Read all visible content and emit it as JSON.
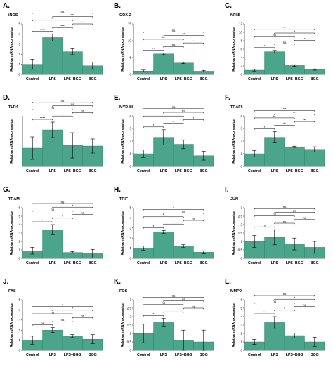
{
  "colors": {
    "bar": "#4aa58a",
    "bar_stroke": "#2f7d64",
    "axis": "#000000"
  },
  "chart_data": [
    {
      "type": "bar",
      "panel": "A.",
      "title": "iNOS",
      "ylabel": "Relative mRNA expression",
      "categories": [
        "Control",
        "LPS",
        "LPS+BGG",
        "BGG"
      ],
      "values": [
        1.0,
        3.65,
        2.25,
        0.85
      ],
      "errors": [
        0.5,
        0.35,
        0.3,
        0.35
      ],
      "ylim": [
        0,
        5
      ],
      "yticks": [
        0,
        1,
        2,
        3,
        4,
        5
      ],
      "comparisons": [
        {
          "pair": [
            0,
            1
          ],
          "label": "****"
        },
        {
          "pair": [
            0,
            2
          ],
          "label": "**"
        },
        {
          "pair": [
            0,
            3
          ],
          "label": "ns"
        },
        {
          "pair": [
            1,
            2
          ],
          "label": "***"
        },
        {
          "pair": [
            1,
            3
          ],
          "label": "***"
        },
        {
          "pair": [
            2,
            3
          ],
          "label": "**"
        }
      ]
    },
    {
      "type": "bar",
      "panel": "B.",
      "title": "COX-2",
      "ylabel": "Relative mRNA expression",
      "categories": [
        "Control",
        "LPS",
        "LPS+BGG",
        "BGG"
      ],
      "values": [
        1.0,
        6.1,
        3.4,
        0.95
      ],
      "errors": [
        0.3,
        0.25,
        0.2,
        0.25
      ],
      "ylim": [
        0,
        15
      ],
      "yticks": [
        0,
        5,
        10,
        15
      ],
      "comparisons": [
        {
          "pair": [
            0,
            1
          ],
          "label": "**"
        },
        {
          "pair": [
            0,
            2
          ],
          "label": "**"
        },
        {
          "pair": [
            0,
            3
          ],
          "label": "ns"
        },
        {
          "pair": [
            1,
            2
          ],
          "label": "ns"
        },
        {
          "pair": [
            1,
            3
          ],
          "label": "**"
        },
        {
          "pair": [
            2,
            3
          ],
          "label": "*"
        }
      ]
    },
    {
      "type": "bar",
      "panel": "C.",
      "title": "NFkB",
      "ylabel": "Relative mRNA expression",
      "categories": [
        "Control",
        "LPS",
        "LPS+BGG",
        "BGG"
      ],
      "values": [
        1.0,
        5.4,
        2.1,
        1.15
      ],
      "errors": [
        0.2,
        0.3,
        0.2,
        0.15
      ],
      "ylim": [
        0,
        12
      ],
      "yticks": [
        0,
        2,
        4,
        6,
        8,
        10,
        12
      ],
      "comparisons": [
        {
          "pair": [
            0,
            1
          ],
          "label": "*"
        },
        {
          "pair": [
            0,
            2
          ],
          "label": "ns"
        },
        {
          "pair": [
            0,
            3
          ],
          "label": "**"
        },
        {
          "pair": [
            1,
            2
          ],
          "label": "ns"
        },
        {
          "pair": [
            1,
            3
          ],
          "label": "*"
        },
        {
          "pair": [
            2,
            3
          ],
          "label": "*"
        }
      ]
    },
    {
      "type": "bar",
      "panel": "D.",
      "title": "TLR4",
      "ylabel": "Relative mRNA expression",
      "categories": [
        "Control",
        "LPS",
        "LPS+BGG",
        "BGG"
      ],
      "values": [
        1.3,
        2.6,
        1.5,
        1.45
      ],
      "errors": [
        0.8,
        0.55,
        0.9,
        0.5
      ],
      "ylim": [
        0,
        3.6
      ],
      "yticks": [],
      "comparisons": [
        {
          "pair": [
            0,
            1
          ],
          "label": "****"
        },
        {
          "pair": [
            0,
            2
          ],
          "label": "ns"
        },
        {
          "pair": [
            0,
            3
          ],
          "label": "ns"
        },
        {
          "pair": [
            1,
            2
          ],
          "label": "*"
        },
        {
          "pair": [
            1,
            3
          ],
          "label": "ns"
        },
        {
          "pair": [
            2,
            3
          ],
          "label": "ns"
        }
      ]
    },
    {
      "type": "bar",
      "panel": "E.",
      "title": "MYD-88",
      "ylabel": "Relative mRNA expression",
      "categories": [
        "Control",
        "LPS",
        "LPS+BGG",
        "BGG"
      ],
      "values": [
        1.0,
        2.3,
        1.75,
        0.85
      ],
      "errors": [
        0.3,
        0.6,
        0.35,
        0.35
      ],
      "ylim": [
        0,
        4
      ],
      "yticks": [
        0,
        1,
        2,
        3,
        4
      ],
      "comparisons": [
        {
          "pair": [
            0,
            1
          ],
          "label": "*"
        },
        {
          "pair": [
            0,
            2
          ],
          "label": "*"
        },
        {
          "pair": [
            0,
            3
          ],
          "label": "ns"
        },
        {
          "pair": [
            1,
            2
          ],
          "label": "**"
        },
        {
          "pair": [
            1,
            3
          ],
          "label": "ns"
        },
        {
          "pair": [
            2,
            3
          ],
          "label": "*"
        }
      ]
    },
    {
      "type": "bar",
      "panel": "F.",
      "title": "TRAF6",
      "ylabel": "Relative mRNA expression",
      "categories": [
        "Control",
        "LPS",
        "LPS+BGG",
        "BGG"
      ],
      "values": [
        1.0,
        2.3,
        1.55,
        1.35
      ],
      "errors": [
        0.25,
        0.45,
        0.05,
        0.2
      ],
      "ylim": [
        0,
        4
      ],
      "yticks": [
        0,
        1,
        2,
        3,
        4
      ],
      "comparisons": [
        {
          "pair": [
            0,
            1
          ],
          "label": "*"
        },
        {
          "pair": [
            0,
            2
          ],
          "label": "**"
        },
        {
          "pair": [
            0,
            3
          ],
          "label": "***"
        },
        {
          "pair": [
            1,
            2
          ],
          "label": "**"
        },
        {
          "pair": [
            1,
            3
          ],
          "label": "***"
        },
        {
          "pair": [
            2,
            3
          ],
          "label": "***"
        }
      ]
    },
    {
      "type": "bar",
      "panel": "G.",
      "title": "TRAM",
      "ylabel": "Relative mRNA expression",
      "categories": [
        "Control",
        "LPS",
        "LPS+BGG",
        "BGG"
      ],
      "values": [
        0.9,
        3.4,
        0.7,
        0.55
      ],
      "errors": [
        0.4,
        0.6,
        0.1,
        0.5
      ],
      "ylim": [
        0,
        6
      ],
      "yticks": [
        0,
        1,
        2,
        3,
        4,
        5,
        6
      ],
      "comparisons": [
        {
          "pair": [
            0,
            1
          ],
          "label": "*"
        },
        {
          "pair": [
            0,
            2
          ],
          "label": "ns"
        },
        {
          "pair": [
            0,
            3
          ],
          "label": "ns"
        },
        {
          "pair": [
            1,
            2
          ],
          "label": "*"
        },
        {
          "pair": [
            1,
            3
          ],
          "label": "*"
        },
        {
          "pair": [
            2,
            3
          ],
          "label": "ns"
        }
      ]
    },
    {
      "type": "bar",
      "panel": "H.",
      "title": "TRIF",
      "ylabel": "Relative mRNA expression",
      "categories": [
        "Control",
        "LPS",
        "LPS+BGG",
        "BGG"
      ],
      "values": [
        1.0,
        2.6,
        1.2,
        0.6
      ],
      "errors": [
        0.2,
        0.15,
        0.15,
        0.15
      ],
      "ylim": [
        0,
        5
      ],
      "yticks": [
        0,
        1,
        2,
        3,
        4,
        5
      ],
      "comparisons": [
        {
          "pair": [
            0,
            1
          ],
          "label": "*"
        },
        {
          "pair": [
            0,
            2
          ],
          "label": "*"
        },
        {
          "pair": [
            0,
            3
          ],
          "label": "*"
        },
        {
          "pair": [
            1,
            2
          ],
          "label": "*"
        },
        {
          "pair": [
            1,
            3
          ],
          "label": "ns"
        },
        {
          "pair": [
            2,
            3
          ],
          "label": "ns"
        }
      ]
    },
    {
      "type": "bar",
      "panel": "I.",
      "title": "JUN",
      "ylabel": "Relative mRNA expression",
      "categories": [
        "Control",
        "LPS",
        "LPS+BGG",
        "BGG"
      ],
      "values": [
        1.0,
        1.25,
        0.85,
        0.65
      ],
      "errors": [
        0.35,
        0.45,
        0.35,
        0.35
      ],
      "ylim": [
        0,
        3
      ],
      "yticks": [
        0,
        0.5,
        1,
        1.5,
        2,
        2.5,
        3
      ],
      "comparisons": [
        {
          "pair": [
            0,
            1
          ],
          "label": "ns"
        },
        {
          "pair": [
            0,
            2
          ],
          "label": "ns"
        },
        {
          "pair": [
            0,
            3
          ],
          "label": "ns"
        },
        {
          "pair": [
            1,
            2
          ],
          "label": "ns"
        },
        {
          "pair": [
            1,
            3
          ],
          "label": "ns"
        },
        {
          "pair": [
            2,
            3
          ],
          "label": "ns"
        }
      ]
    },
    {
      "type": "bar",
      "panel": "J.",
      "title": "FAS",
      "ylabel": "Relative mRNA expression",
      "categories": [
        "Control",
        "LPS",
        "LPS+BGG",
        "BGG"
      ],
      "values": [
        1.0,
        2.0,
        1.4,
        1.1
      ],
      "errors": [
        0.4,
        0.25,
        0.15,
        0.45
      ],
      "ylim": [
        0,
        5
      ],
      "yticks": [
        0,
        1,
        2,
        3,
        4,
        5
      ],
      "comparisons": [
        {
          "pair": [
            0,
            1
          ],
          "label": "ns"
        },
        {
          "pair": [
            0,
            2
          ],
          "label": "ns"
        },
        {
          "pair": [
            0,
            3
          ],
          "label": "*"
        },
        {
          "pair": [
            1,
            2
          ],
          "label": "ns"
        },
        {
          "pair": [
            1,
            3
          ],
          "label": "*"
        },
        {
          "pair": [
            2,
            3
          ],
          "label": "ns"
        }
      ]
    },
    {
      "type": "bar",
      "panel": "K.",
      "title": "FOS",
      "ylabel": "Relative mRNA expression",
      "categories": [
        "Control",
        "LPS",
        "LPS+BGG",
        "BGG"
      ],
      "values": [
        1.0,
        1.65,
        0.6,
        0.5
      ],
      "errors": [
        0.55,
        0.25,
        0.6,
        0.7
      ],
      "ylim": [
        0,
        3
      ],
      "yticks": [
        0,
        0.5,
        1,
        1.5,
        2,
        2.5,
        3
      ],
      "comparisons": [
        {
          "pair": [
            0,
            1
          ],
          "label": "*"
        },
        {
          "pair": [
            0,
            2
          ],
          "label": "ns"
        },
        {
          "pair": [
            0,
            3
          ],
          "label": "ns"
        },
        {
          "pair": [
            1,
            2
          ],
          "label": "*"
        },
        {
          "pair": [
            1,
            3
          ],
          "label": "ns"
        },
        {
          "pair": [
            2,
            3
          ],
          "label": "ns"
        }
      ]
    },
    {
      "type": "bar",
      "panel": "L.",
      "title": "MMP9",
      "ylabel": "Relative mRNA expression",
      "categories": [
        "Control",
        "LPS",
        "LPS+BGG",
        "BGG"
      ],
      "values": [
        1.0,
        3.3,
        1.75,
        1.0
      ],
      "errors": [
        0.3,
        0.7,
        0.3,
        0.55
      ],
      "ylim": [
        0,
        6
      ],
      "yticks": [
        0,
        1,
        2,
        3,
        4,
        5,
        6
      ],
      "comparisons": [
        {
          "pair": [
            0,
            1
          ],
          "label": "**"
        },
        {
          "pair": [
            0,
            2
          ],
          "label": "ns"
        },
        {
          "pair": [
            0,
            3
          ],
          "label": "ns"
        },
        {
          "pair": [
            1,
            2
          ],
          "label": "*"
        },
        {
          "pair": [
            1,
            3
          ],
          "label": "*"
        },
        {
          "pair": [
            2,
            3
          ],
          "label": "ns"
        }
      ]
    }
  ]
}
